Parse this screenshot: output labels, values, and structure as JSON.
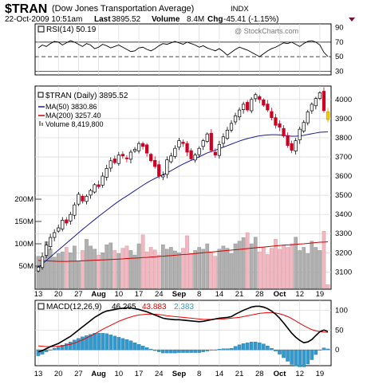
{
  "header": {
    "symbol": "$TRAN",
    "name": "(Dow Jones Transportation Average)",
    "exchange": "INDX",
    "datetime": "22-Oct-2009 10:51am",
    "last_label": "Last",
    "last_value": "3895.52",
    "volume_label": "Volume",
    "volume_value": "8.4M",
    "chg_label": "Chg",
    "chg_value": "-45.41 (-1.15%)",
    "watermark": "@ StockCharts.com"
  },
  "colors": {
    "up": "#000000",
    "down": "#cc0022",
    "highlight": "#ffcc00",
    "ma50": "#1a1a99",
    "ma200": "#cc0000",
    "vol_up": "#b0b0b0",
    "vol_down": "#f0b8c0",
    "macd_line": "#000000",
    "signal_line": "#ee0000",
    "histogram": "#3399cc"
  },
  "chart_data": [
    {
      "type": "line",
      "title": "RSI(14) 50.19",
      "yticks": [
        30,
        50,
        70,
        90
      ],
      "ylim": [
        25,
        95
      ],
      "reference_lines": [
        30,
        50,
        70
      ],
      "values": [
        62,
        66,
        64,
        68,
        71,
        70,
        66,
        69,
        72,
        70,
        67,
        64,
        68,
        66,
        61,
        63,
        67,
        65,
        62,
        64,
        66,
        63,
        60,
        57,
        58,
        62,
        63,
        60,
        58,
        61,
        65,
        68,
        67,
        69,
        71,
        69,
        67,
        70,
        68,
        66,
        63,
        65,
        62,
        60,
        58,
        61,
        57,
        52,
        56,
        60,
        63,
        61,
        59,
        56,
        53,
        50,
        54,
        58,
        61,
        63,
        66,
        69,
        68,
        70,
        67,
        64,
        68,
        71,
        72,
        70,
        66,
        56,
        50.19
      ]
    },
    {
      "type": "candlestick",
      "title": "$TRAN (Daily) 3895.52",
      "x_labels": [
        "13",
        "20",
        "27",
        "Aug",
        "10",
        "17",
        "24",
        "Sep",
        "8",
        "14",
        "21",
        "28",
        "Oct",
        "12",
        "19"
      ],
      "yticks": [
        3100,
        3200,
        3300,
        3400,
        3500,
        3600,
        3700,
        3800,
        3900,
        4000
      ],
      "ylim": [
        3010,
        4070
      ],
      "closes": [
        3125,
        3180,
        3240,
        3280,
        3305,
        3330,
        3370,
        3355,
        3400,
        3450,
        3505,
        3470,
        3495,
        3525,
        3555,
        3545,
        3600,
        3640,
        3680,
        3670,
        3710,
        3705,
        3690,
        3725,
        3740,
        3770,
        3755,
        3720,
        3680,
        3650,
        3600,
        3605,
        3685,
        3705,
        3745,
        3785,
        3770,
        3725,
        3690,
        3710,
        3745,
        3785,
        3820,
        3735,
        3710,
        3765,
        3805,
        3840,
        3875,
        3915,
        3945,
        3975,
        3945,
        4000,
        4025,
        4000,
        3970,
        3945,
        3905,
        3865,
        3855,
        3810,
        3760,
        3735,
        3785,
        3845,
        3880,
        3935,
        3975,
        4005,
        4035,
        3942,
        3895.52
      ],
      "legend": [
        {
          "label": "$TRAN (Daily) 3895.52"
        },
        {
          "label": "MA(50) 3830.86",
          "values": [
            3125,
            3142,
            3160,
            3178,
            3196,
            3214,
            3232,
            3250,
            3268,
            3286,
            3304,
            3322,
            3339,
            3356,
            3373,
            3390,
            3406,
            3422,
            3438,
            3454,
            3469,
            3483,
            3496,
            3510,
            3524,
            3538,
            3552,
            3565,
            3577,
            3588,
            3598,
            3607,
            3617,
            3628,
            3640,
            3652,
            3663,
            3673,
            3682,
            3691,
            3701,
            3711,
            3721,
            3728,
            3735,
            3743,
            3751,
            3759,
            3767,
            3775,
            3783,
            3790,
            3796,
            3801,
            3806,
            3810,
            3813,
            3815,
            3816,
            3816,
            3815,
            3813,
            3810,
            3808,
            3808,
            3810,
            3813,
            3817,
            3821,
            3825,
            3829,
            3830,
            3830.86
          ]
        },
        {
          "label": "MA(200) 3257.40",
          "values": [
            3160,
            3159,
            3158,
            3157,
            3156,
            3155,
            3155,
            3155,
            3156,
            3156,
            3157,
            3158,
            3159,
            3160,
            3161,
            3162,
            3163,
            3164,
            3165,
            3166,
            3167,
            3168,
            3170,
            3171,
            3172,
            3173,
            3175,
            3176,
            3178,
            3179,
            3181,
            3182,
            3184,
            3185,
            3187,
            3189,
            3191,
            3192,
            3194,
            3196,
            3198,
            3200,
            3202,
            3204,
            3206,
            3208,
            3210,
            3212,
            3214,
            3216,
            3218,
            3220,
            3222,
            3224,
            3226,
            3228,
            3230,
            3232,
            3234,
            3236,
            3238,
            3240,
            3241,
            3242,
            3244,
            3246,
            3247,
            3249,
            3251,
            3253,
            3255,
            3256,
            3257.4
          ]
        },
        {
          "label": "Volume 8,419,800"
        }
      ],
      "volume_ticks": [
        "50M",
        "100M",
        "150M",
        "200M"
      ],
      "volume_millions": [
        72,
        60,
        105,
        88,
        70,
        78,
        82,
        92,
        80,
        95,
        60,
        85,
        110,
        95,
        88,
        75,
        80,
        98,
        102,
        85,
        78,
        90,
        95,
        85,
        75,
        100,
        120,
        82,
        92,
        86,
        75,
        98,
        88,
        92,
        84,
        80,
        90,
        118,
        78,
        85,
        92,
        88,
        100,
        80,
        72,
        88,
        95,
        90,
        78,
        100,
        106,
        114,
        125,
        100,
        115,
        82,
        92,
        76,
        90,
        110,
        88,
        96,
        92,
        100,
        115,
        85,
        92,
        78,
        106,
        92,
        85,
        128,
        8.4
      ]
    },
    {
      "type": "line",
      "title": "MACD(12,26,9)",
      "legend": [
        {
          "label": "MACD(12,26,9)"
        },
        {
          "label": "46.265"
        },
        {
          "label": "43.883"
        },
        {
          "label": "2.383"
        }
      ],
      "yticks": [
        0,
        50,
        100
      ],
      "ylim": [
        -40,
        125
      ],
      "macd": [
        -5,
        -2,
        3,
        8,
        12,
        16,
        22,
        28,
        34,
        42,
        50,
        58,
        66,
        74,
        82,
        88,
        94,
        98,
        100,
        102,
        104,
        105,
        106,
        106,
        104,
        102,
        99,
        96,
        92,
        88,
        84,
        80,
        78,
        77,
        76,
        76,
        75,
        74,
        73,
        72,
        71,
        72,
        74,
        76,
        78,
        80,
        81,
        82,
        84,
        90,
        95,
        100,
        104,
        108,
        110,
        110,
        108,
        104,
        98,
        90,
        80,
        68,
        55,
        42,
        32,
        24,
        18,
        20,
        26,
        36,
        46,
        50,
        46.265
      ],
      "signal": [
        10,
        9,
        8,
        8,
        8,
        9,
        10,
        12,
        14,
        17,
        21,
        25,
        30,
        35,
        40,
        46,
        52,
        57,
        62,
        67,
        72,
        76,
        80,
        83,
        86,
        88,
        89,
        90,
        90,
        90,
        89,
        88,
        86,
        85,
        84,
        83,
        82,
        81,
        80,
        79,
        78,
        77,
        77,
        77,
        78,
        78,
        78,
        79,
        80,
        81,
        82,
        84,
        86,
        88,
        90,
        92,
        93,
        94,
        94,
        93,
        91,
        88,
        84,
        79,
        73,
        67,
        61,
        56,
        51,
        48,
        46,
        45,
        43.883
      ],
      "histogram": [
        -15,
        -11,
        -5,
        0,
        4,
        7,
        12,
        16,
        20,
        25,
        29,
        33,
        36,
        39,
        42,
        42,
        42,
        41,
        38,
        35,
        32,
        29,
        26,
        23,
        18,
        14,
        10,
        6,
        2,
        -2,
        -5,
        -8,
        -8,
        -8,
        -8,
        -7,
        -7,
        -7,
        -7,
        -7,
        -7,
        -5,
        -3,
        -1,
        0,
        2,
        3,
        3,
        4,
        9,
        13,
        16,
        18,
        20,
        20,
        18,
        15,
        10,
        4,
        -3,
        -11,
        -20,
        -29,
        -37,
        -41,
        -43,
        -43,
        -36,
        -25,
        -12,
        0,
        5,
        2.383
      ]
    }
  ]
}
